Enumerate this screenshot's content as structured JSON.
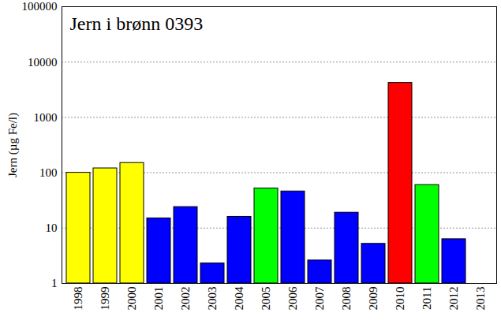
{
  "chart_data": {
    "type": "bar",
    "title": "Jern i brønn 0393",
    "y_label": "Jern (µg Fe/l)",
    "categories": [
      "1998",
      "1999",
      "2000",
      "2001",
      "2002",
      "2003",
      "2004",
      "2005",
      "2006",
      "2007",
      "2008",
      "2009",
      "2010",
      "2011",
      "2012",
      "2013"
    ],
    "values": [
      100,
      120,
      150,
      15,
      24,
      2.3,
      16,
      52,
      46,
      2.6,
      19,
      5.2,
      4200,
      60,
      6.3,
      null
    ],
    "colors": [
      "#ffff00",
      "#ffff00",
      "#ffff00",
      "#0000ff",
      "#0000ff",
      "#0000ff",
      "#0000ff",
      "#00ff00",
      "#0000ff",
      "#0000ff",
      "#0000ff",
      "#0000ff",
      "#ff0000",
      "#00ff00",
      "#0000ff",
      null
    ],
    "log": "y",
    "ylim": [
      1,
      100000
    ],
    "yticks": [
      1,
      10,
      100,
      1000,
      10000,
      100000
    ],
    "grid": true
  }
}
